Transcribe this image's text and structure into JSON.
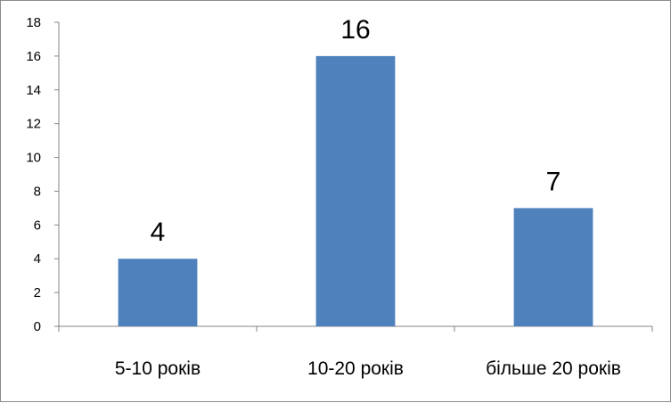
{
  "chart_data": {
    "type": "bar",
    "categories": [
      "5-10 років",
      "10-20 років",
      "більше 20 років"
    ],
    "values": [
      4,
      16,
      7
    ],
    "data_labels": [
      "4",
      "16",
      "7"
    ],
    "title": "",
    "xlabel": "",
    "ylabel": "",
    "ylim": [
      0,
      18
    ],
    "yticks": [
      0,
      2,
      4,
      6,
      8,
      10,
      12,
      14,
      16,
      18
    ],
    "grid": false,
    "legend": "none",
    "bar_color": "#4f81bd",
    "axis_color": "#868686"
  }
}
